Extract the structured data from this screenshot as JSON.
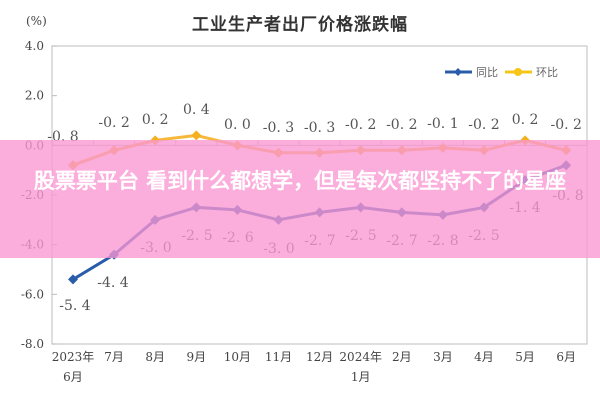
{
  "chart_data": {
    "type": "line",
    "title": "工业生产者出厂价格涨跌幅",
    "ylabel": "(%)",
    "xlabel": "",
    "ylim": [
      -8.0,
      4.0
    ],
    "yticks": [
      "4.0",
      "2.0",
      "0.0",
      "-2.0",
      "-4.0",
      "-6.0",
      "-8.0"
    ],
    "categories": [
      "2023年6月",
      "7月",
      "8月",
      "9月",
      "10月",
      "11月",
      "12月",
      "2024年1月",
      "2月",
      "3月",
      "4月",
      "5月",
      "6月"
    ],
    "category_lines": [
      [
        "2023年",
        "6月"
      ],
      [
        "7月"
      ],
      [
        "8月"
      ],
      [
        "9月"
      ],
      [
        "10月"
      ],
      [
        "11月"
      ],
      [
        "12月"
      ],
      [
        "2024年",
        "1月"
      ],
      [
        "2月"
      ],
      [
        "3月"
      ],
      [
        "4月"
      ],
      [
        "5月"
      ],
      [
        "6月"
      ]
    ],
    "series": [
      {
        "name": "同比",
        "color": "#2a5caa",
        "values": [
          -5.4,
          -4.4,
          -3.0,
          -2.5,
          -2.6,
          -3.0,
          -2.7,
          -2.5,
          -2.7,
          -2.8,
          -2.5,
          -1.4,
          -0.8
        ]
      },
      {
        "name": "环比",
        "color": "#f5c518",
        "values": [
          -0.8,
          -0.2,
          0.2,
          0.4,
          0.0,
          -0.3,
          -0.3,
          -0.2,
          -0.2,
          -0.1,
          -0.2,
          0.2,
          -0.2
        ]
      }
    ],
    "legend_position": "top-right",
    "grid": false
  },
  "overlay": {
    "text": "股票票平台 看到什么都想学，但是每次都坚持不了的星座"
  }
}
